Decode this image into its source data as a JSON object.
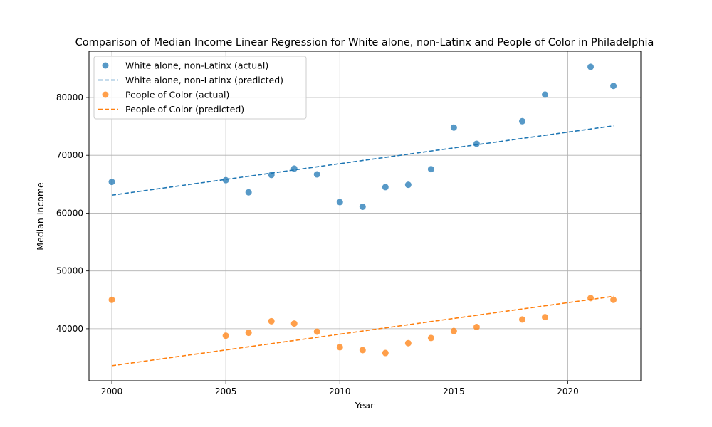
{
  "chart_data": {
    "type": "scatter",
    "title": "Comparison of Median Income Linear Regression for White alone, non-Latinx and People of Color in Philadelphia",
    "xlabel": "Year",
    "ylabel": "Median Income",
    "xlim": [
      1999,
      2023.2
    ],
    "ylim": [
      31000,
      88000
    ],
    "xticks": [
      2000,
      2005,
      2010,
      2015,
      2020
    ],
    "yticks": [
      40000,
      50000,
      60000,
      70000,
      80000
    ],
    "grid": true,
    "legend_position": "top-left",
    "series": [
      {
        "name": "White alone, non-Latinx (actual)",
        "kind": "scatter",
        "color": "#1f77b4",
        "points": [
          [
            2000,
            65400
          ],
          [
            2005,
            65700
          ],
          [
            2006,
            63600
          ],
          [
            2007,
            66600
          ],
          [
            2008,
            67700
          ],
          [
            2009,
            66700
          ],
          [
            2010,
            61900
          ],
          [
            2011,
            61100
          ],
          [
            2012,
            64500
          ],
          [
            2013,
            64900
          ],
          [
            2014,
            67600
          ],
          [
            2015,
            74800
          ],
          [
            2016,
            72000
          ],
          [
            2018,
            75900
          ],
          [
            2019,
            80500
          ],
          [
            2021,
            85300
          ],
          [
            2022,
            82000
          ]
        ]
      },
      {
        "name": "White alone, non-Latinx (predicted)",
        "kind": "dashed-line",
        "color": "#1f77b4",
        "points": [
          [
            2000,
            63100
          ],
          [
            2022,
            75100
          ]
        ]
      },
      {
        "name": "People of Color (actual)",
        "kind": "scatter",
        "color": "#ff7f0e",
        "points": [
          [
            2000,
            45000
          ],
          [
            2005,
            38800
          ],
          [
            2006,
            39300
          ],
          [
            2007,
            41300
          ],
          [
            2008,
            40900
          ],
          [
            2009,
            39500
          ],
          [
            2010,
            36800
          ],
          [
            2011,
            36300
          ],
          [
            2012,
            35800
          ],
          [
            2013,
            37500
          ],
          [
            2014,
            38400
          ],
          [
            2015,
            39600
          ],
          [
            2016,
            40300
          ],
          [
            2018,
            41600
          ],
          [
            2019,
            42000
          ],
          [
            2021,
            45300
          ],
          [
            2022,
            45000
          ]
        ]
      },
      {
        "name": "People of Color (predicted)",
        "kind": "dashed-line",
        "color": "#ff7f0e",
        "points": [
          [
            2000,
            33600
          ],
          [
            2022,
            45600
          ]
        ]
      }
    ]
  }
}
